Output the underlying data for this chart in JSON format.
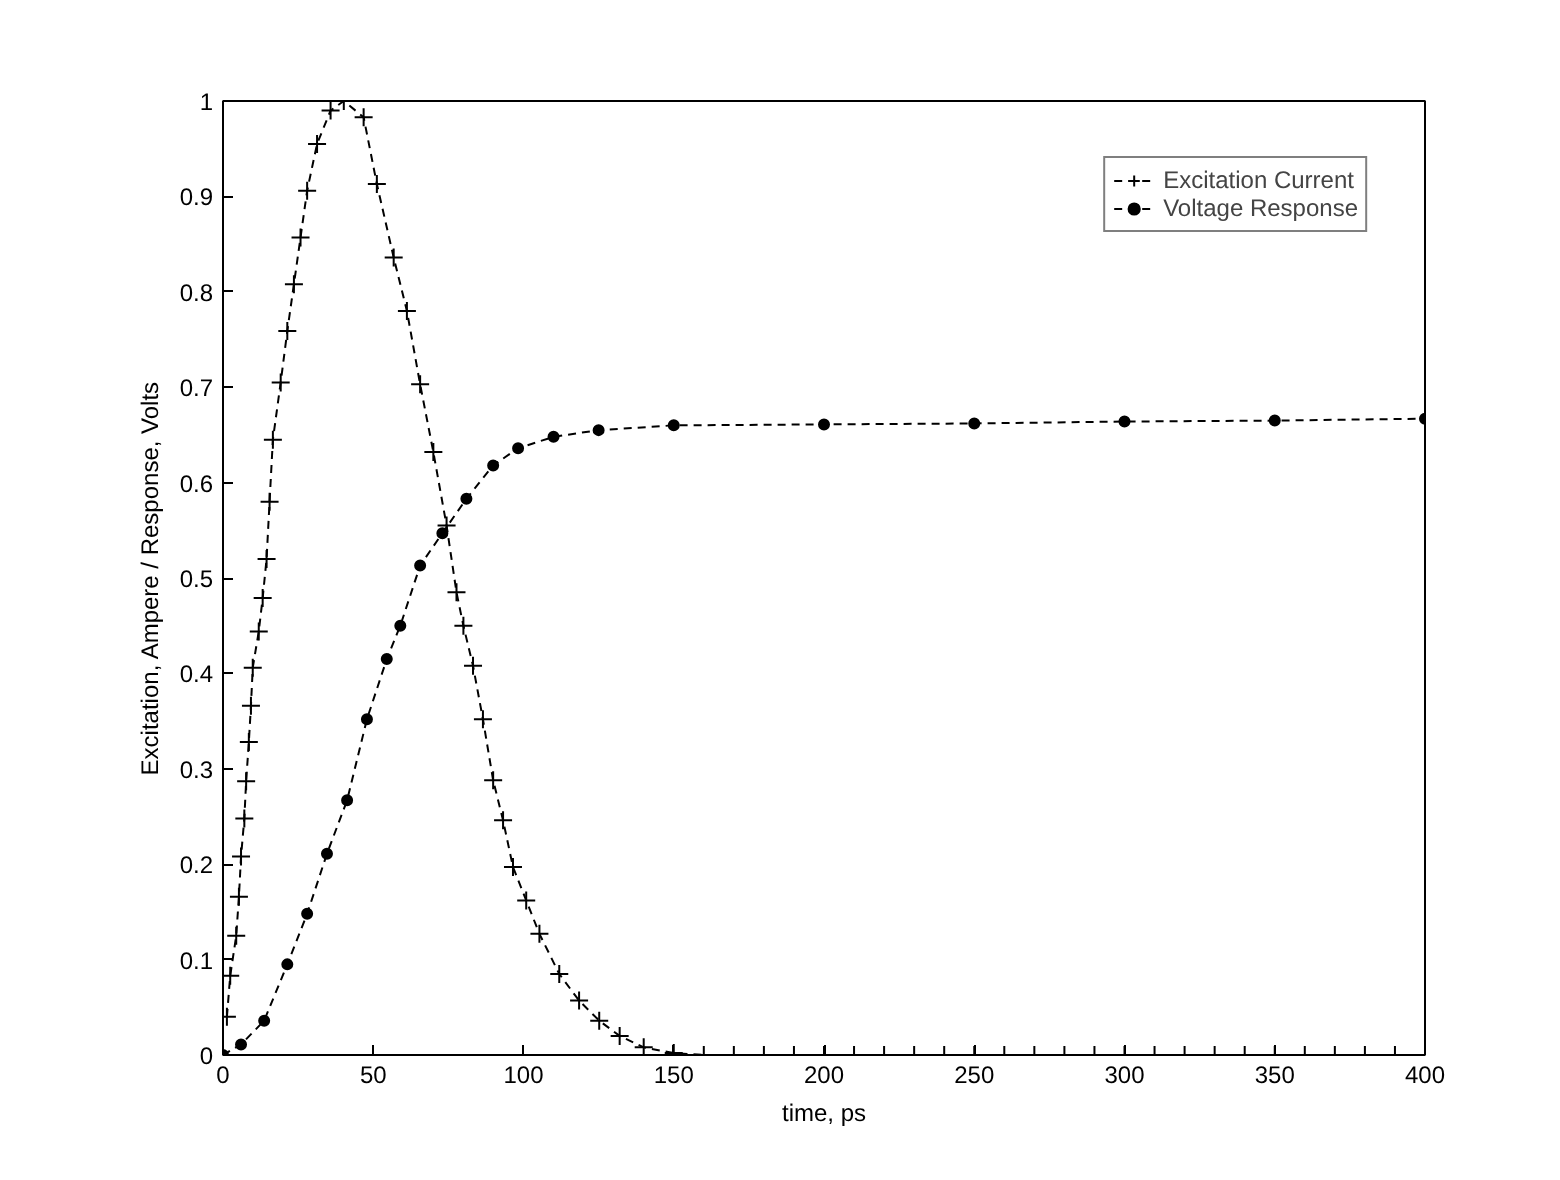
{
  "chart_data": {
    "type": "line",
    "xlabel": "time, ps",
    "ylabel": "Excitation, Ampere / Response, Volts",
    "xlim": [
      0,
      400
    ],
    "ylim": [
      0,
      1
    ],
    "xticks": [
      0,
      50,
      100,
      150,
      200,
      250,
      300,
      350,
      400
    ],
    "yticks": [
      0,
      {
        "value": 0.1,
        "label": "0.1"
      },
      {
        "value": 0.2,
        "label": "0.2"
      },
      {
        "value": 0.3,
        "label": "0.3"
      },
      {
        "value": 0.4,
        "label": "0.4"
      },
      {
        "value": 0.5,
        "label": "0.5"
      },
      {
        "value": 0.6,
        "label": "0.6"
      },
      {
        "value": 0.7,
        "label": "0.7"
      },
      {
        "value": 0.8,
        "label": "0.8"
      },
      {
        "value": 0.9,
        "label": "0.9"
      },
      1
    ],
    "grid": false,
    "legend": "top right",
    "line_style": "dashed",
    "series": [
      {
        "name": "Excitation Current",
        "color": "#000000",
        "marker": "cross",
        "x": [
          1.3,
          2.4,
          4.4,
          5.3,
          6,
          7.1,
          7.7,
          8.6,
          9.3,
          9.9,
          11.9,
          13.2,
          14.5,
          15.5,
          16.6,
          19.2,
          21.4,
          23.6,
          25.8,
          28,
          31.3,
          35.8,
          40.2,
          46.8,
          51.2,
          56.8,
          61.2,
          65.6,
          70,
          74.4,
          77.7,
          80,
          83.2,
          86.5,
          89.9,
          93.2,
          96.5,
          100.9,
          105.3,
          111.9,
          118.5,
          125.2,
          132,
          140,
          150,
          160,
          170,
          180,
          190,
          200,
          210,
          220,
          230,
          240,
          250,
          260,
          270,
          280,
          290,
          300,
          310,
          320,
          330,
          340,
          350,
          360,
          370,
          380,
          390,
          400
        ],
        "values": [
          0.04,
          0.083,
          0.125,
          0.166,
          0.208,
          0.248,
          0.287,
          0.328,
          0.366,
          0.406,
          0.444,
          0.479,
          0.52,
          0.58,
          0.645,
          0.705,
          0.759,
          0.808,
          0.857,
          0.906,
          0.955,
          0.99,
          1.0,
          0.983,
          0.913,
          0.836,
          0.78,
          0.703,
          0.632,
          0.555,
          0.485,
          0.45,
          0.408,
          0.352,
          0.288,
          0.246,
          0.197,
          0.162,
          0.127,
          0.085,
          0.057,
          0.036,
          0.02,
          0.008,
          0.002,
          0,
          0,
          0,
          0,
          0,
          0,
          0,
          0,
          0,
          0,
          0,
          0,
          0,
          0,
          0,
          0,
          0,
          0,
          0,
          0,
          0,
          0,
          0,
          0,
          0
        ]
      },
      {
        "name": "Voltage Response",
        "color": "#000000",
        "marker": "circle",
        "x": [
          0,
          6,
          13.7,
          21.4,
          28,
          34.6,
          41.3,
          47.9,
          54.5,
          59,
          65.6,
          73,
          81,
          89.9,
          98.2,
          110,
          125,
          150,
          200,
          250,
          300,
          350,
          400
        ],
        "values": [
          0,
          0.011,
          0.036,
          0.095,
          0.148,
          0.211,
          0.267,
          0.352,
          0.415,
          0.45,
          0.513,
          0.547,
          0.583,
          0.618,
          0.636,
          0.648,
          0.655,
          0.66,
          0.661,
          0.662,
          0.664,
          0.665,
          0.667
        ]
      }
    ]
  }
}
